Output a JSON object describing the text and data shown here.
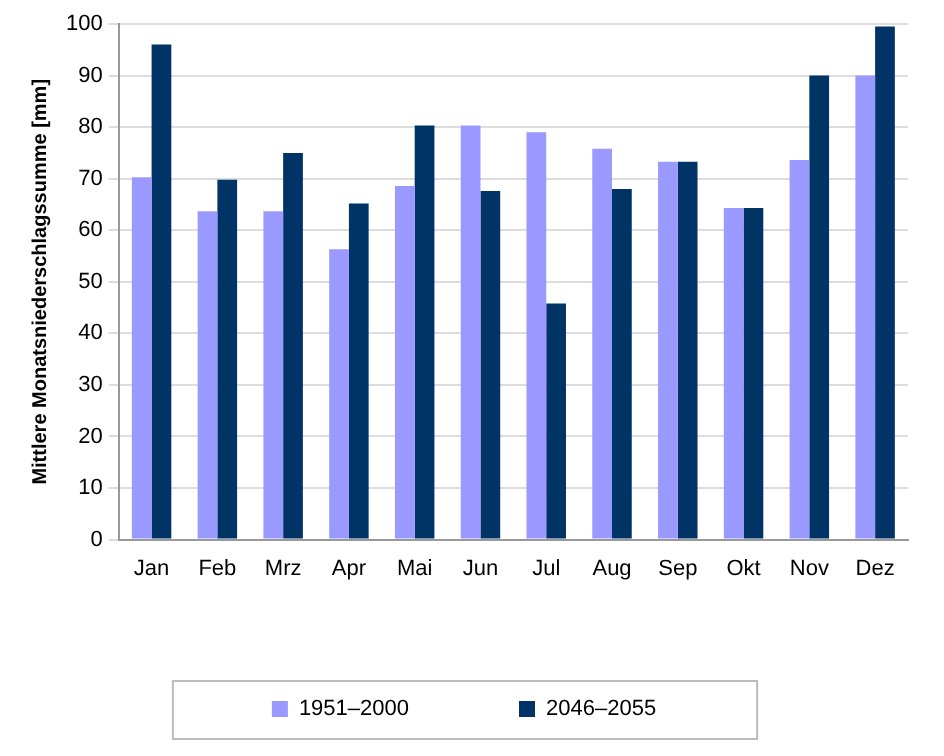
{
  "chart_data": {
    "type": "bar",
    "ylabel": "Mittlere Monatsniederschlagssumme [mm]",
    "categories": [
      "Jan",
      "Feb",
      "Mrz",
      "Apr",
      "Mai",
      "Jun",
      "Jul",
      "Aug",
      "Sep",
      "Okt",
      "Nov",
      "Dez"
    ],
    "series": [
      {
        "name": "1951–2000",
        "color": "#9999ff",
        "values": [
          70.3,
          63.7,
          63.7,
          56.3,
          68.6,
          80.3,
          79,
          75.8,
          73.3,
          64.3,
          73.6,
          90
        ]
      },
      {
        "name": "2046–2055",
        "color": "#003366",
        "values": [
          96,
          69.8,
          75,
          65.2,
          80.3,
          67.6,
          45.8,
          68,
          73.3,
          64.3,
          90,
          99.5
        ]
      }
    ],
    "ylim": [
      0,
      100
    ],
    "yticks": [
      0,
      10,
      20,
      30,
      40,
      50,
      60,
      70,
      80,
      90,
      100
    ],
    "grid": "y",
    "legend": "bottom"
  }
}
